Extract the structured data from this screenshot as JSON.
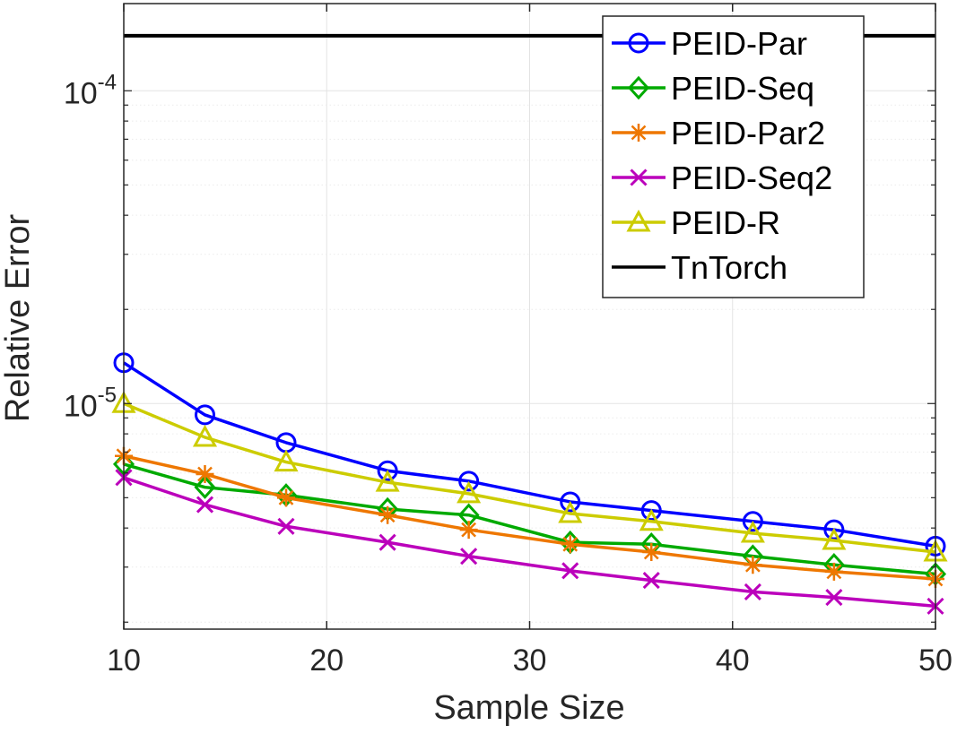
{
  "chart_data": {
    "type": "line",
    "title": "",
    "xlabel": "Sample Size",
    "ylabel": "Relative Error",
    "x": [
      10,
      14,
      18,
      23,
      27,
      32,
      36,
      41,
      45,
      50
    ],
    "xlim": [
      10,
      50
    ],
    "ylim": [
      1.9e-06,
      0.00019
    ],
    "yscale": "log",
    "grid": true,
    "legend_position": "top-right",
    "xticks": [
      {
        "value": 10,
        "label": "10"
      },
      {
        "value": 20,
        "label": "20"
      },
      {
        "value": 30,
        "label": "30"
      },
      {
        "value": 40,
        "label": "40"
      },
      {
        "value": 50,
        "label": "50"
      }
    ],
    "yticks": [
      {
        "value": 1e-05,
        "base": "10",
        "exponent": "-5"
      },
      {
        "value": 0.0001,
        "base": "10",
        "exponent": "-4"
      }
    ],
    "series": [
      {
        "name": "PEID-Par",
        "color": "#0000ff",
        "marker": "circle",
        "values": [
          1.35e-05,
          9.2e-06,
          7.5e-06,
          6.1e-06,
          5.65e-06,
          4.85e-06,
          4.55e-06,
          4.2e-06,
          3.95e-06,
          3.5e-06
        ]
      },
      {
        "name": "PEID-Seq",
        "color": "#00aa00",
        "marker": "diamond",
        "values": [
          6.4e-06,
          5.4e-06,
          5.1e-06,
          4.6e-06,
          4.4e-06,
          3.6e-06,
          3.55e-06,
          3.25e-06,
          3.05e-06,
          2.85e-06
        ]
      },
      {
        "name": "PEID-Par2",
        "color": "#ee7700",
        "marker": "asterisk",
        "values": [
          6.8e-06,
          5.95e-06,
          5e-06,
          4.4e-06,
          3.95e-06,
          3.55e-06,
          3.35e-06,
          3.05e-06,
          2.9e-06,
          2.75e-06
        ]
      },
      {
        "name": "PEID-Seq2",
        "color": "#bb00bb",
        "marker": "x",
        "values": [
          5.8e-06,
          4.75e-06,
          4.05e-06,
          3.6e-06,
          3.25e-06,
          2.92e-06,
          2.72e-06,
          2.5e-06,
          2.4e-06,
          2.25e-06
        ]
      },
      {
        "name": "PEID-R",
        "color": "#cccc00",
        "marker": "triangle",
        "values": [
          1e-05,
          7.8e-06,
          6.5e-06,
          5.6e-06,
          5.15e-06,
          4.45e-06,
          4.2e-06,
          3.85e-06,
          3.65e-06,
          3.35e-06
        ]
      },
      {
        "name": "TnTorch",
        "color": "#000000",
        "marker": "none",
        "values": [
          0.00015,
          0.00015,
          0.00015,
          0.00015,
          0.00015,
          0.00015,
          0.00015,
          0.00015,
          0.00015,
          0.00015
        ]
      }
    ]
  }
}
